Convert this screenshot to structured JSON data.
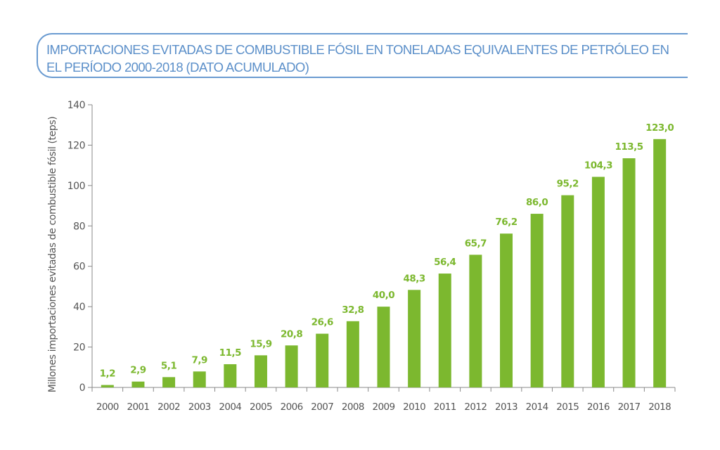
{
  "chart_data": {
    "type": "bar",
    "title": "IMPORTACIONES EVITADAS DE COMBUSTIBLE FÓSIL EN TONELADAS EQUIVALENTES DE PETRÓLEO EN EL PERÍODO 2000-2018 (DATO ACUMULADO)",
    "xlabel": "",
    "ylabel": "Millones importaciones evitadas de combustible fósil (teps)",
    "categories": [
      "2000",
      "2001",
      "2002",
      "2003",
      "2004",
      "2005",
      "2006",
      "2007",
      "2008",
      "2009",
      "2010",
      "2011",
      "2012",
      "2013",
      "2014",
      "2015",
      "2016",
      "2017",
      "2018"
    ],
    "values": [
      1.2,
      2.9,
      5.1,
      7.9,
      11.5,
      15.9,
      20.8,
      26.6,
      32.8,
      40.0,
      48.3,
      56.4,
      65.7,
      76.2,
      86.0,
      95.2,
      104.3,
      113.5,
      123.0
    ],
    "data_labels": [
      "1,2",
      "2,9",
      "5,1",
      "7,9",
      "11,5",
      "15,9",
      "20,8",
      "26,6",
      "32,8",
      "40,0",
      "48,3",
      "56,4",
      "65,7",
      "76,2",
      "86,0",
      "95,2",
      "104,3",
      "113,5",
      "123,0"
    ],
    "ylim": [
      0,
      140
    ],
    "yticks": [
      0,
      20,
      40,
      60,
      80,
      100,
      120,
      140
    ],
    "grid": false,
    "colors": {
      "bar": "#7cb82f",
      "title": "#5b8fc9",
      "axis": "#888888"
    }
  }
}
